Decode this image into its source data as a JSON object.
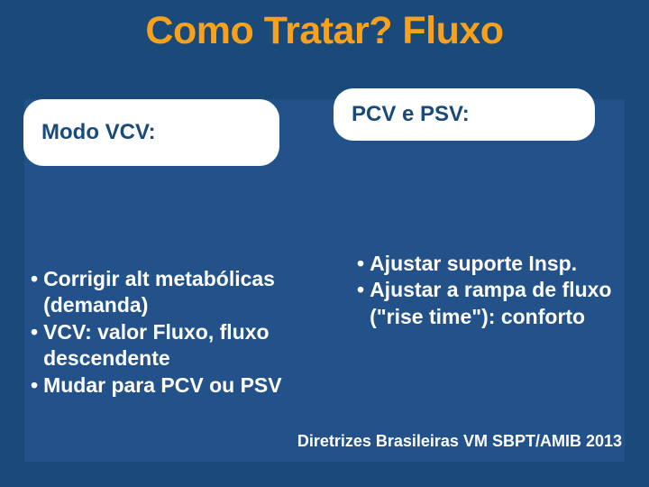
{
  "slide": {
    "title": "Como Tratar? Fluxo",
    "title_color": "#f9a11b",
    "title_fontsize": 43,
    "background_color": "#194a7a",
    "inner_background_color": "#23528a",
    "pill_background": "#ffffff",
    "pill_text_color": "#194a7a",
    "text_color": "#ffffff"
  },
  "left": {
    "heading": "Modo VCV:",
    "items": [
      "Corrigir alt metabólicas (demanda)",
      "VCV: valor Fluxo, fluxo descendente",
      "Mudar para PCV ou PSV"
    ]
  },
  "right": {
    "heading": "PCV e PSV:",
    "items": [
      "Ajustar suporte Insp.",
      "Ajustar a rampa de fluxo (\"rise time\"): conforto"
    ]
  },
  "footnote": "Diretrizes Brasileiras VM SBPT/AMIB 2013"
}
